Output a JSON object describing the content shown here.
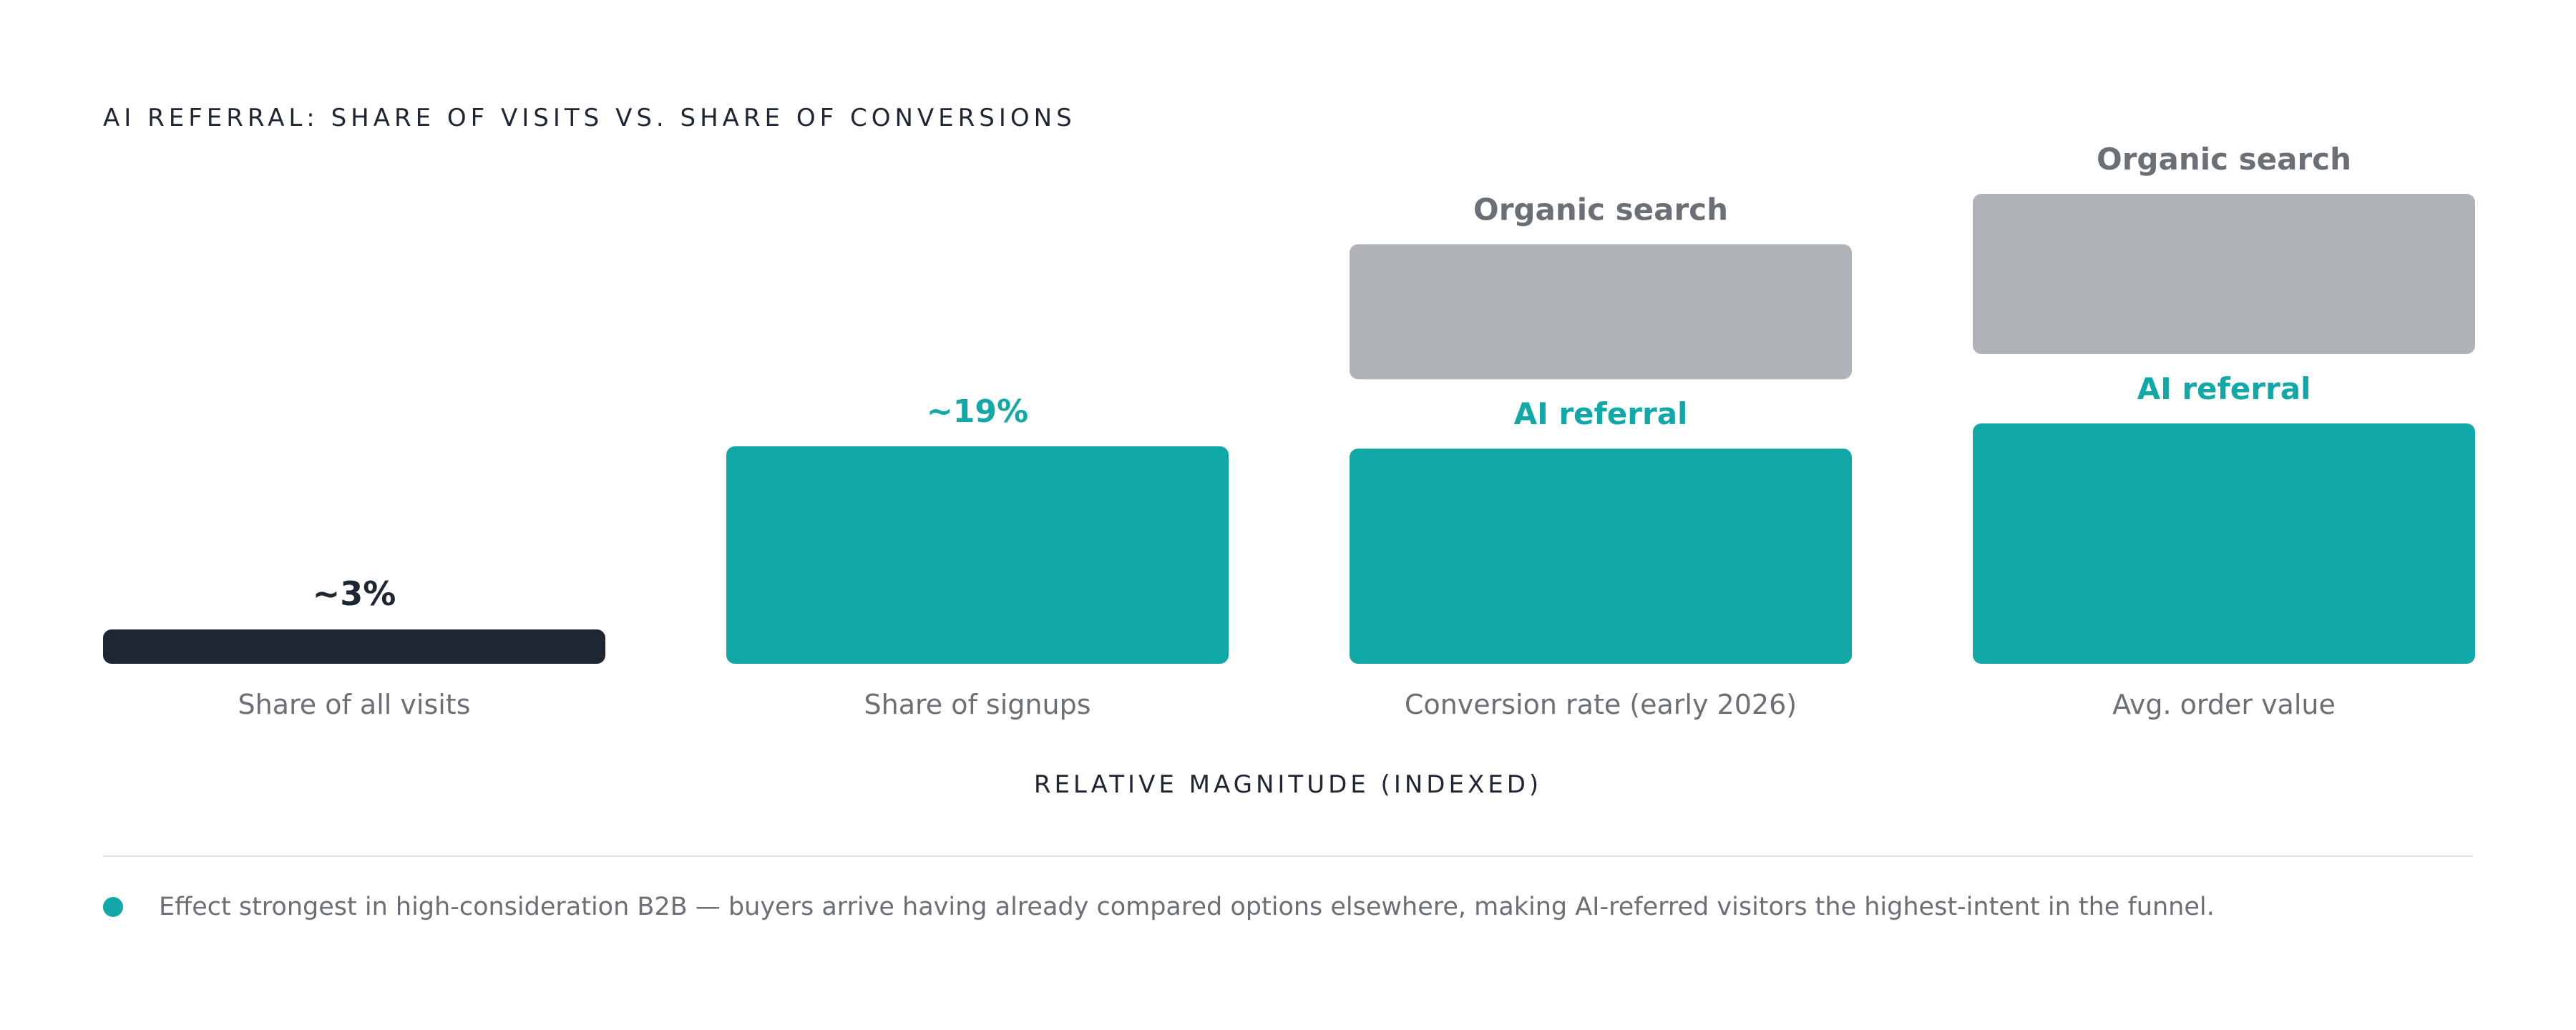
{
  "colors": {
    "ai_referral": "#12a8a8",
    "organic_search": "#afb2b6",
    "all_visits": "#1e2633",
    "label_gray": "#6b6f76",
    "title": "#1e2633",
    "divider": "#e0e2e5"
  },
  "chart_data": {
    "type": "bar",
    "title": "AI REFERRAL: SHARE OF VISITS VS. SHARE OF CONVERSIONS",
    "xlabel": "RELATIVE MAGNITUDE (INDEXED)",
    "ylabel": "",
    "grid": false,
    "groups": [
      {
        "category": "Share of all visits",
        "bars": [
          {
            "name": "",
            "value": 3,
            "label": "~3%",
            "color_key": "all_visits"
          }
        ]
      },
      {
        "category": "Share of signups",
        "bars": [
          {
            "name": "",
            "value": 19,
            "label": "~19%",
            "color_key": "ai_referral"
          }
        ]
      },
      {
        "category": "Conversion rate (early 2026)",
        "bars": [
          {
            "name": "AI referral",
            "value": 18.8,
            "label": "AI referral",
            "color_key": "ai_referral"
          },
          {
            "name": "Organic search",
            "value": 11.8,
            "label": "Organic search",
            "color_key": "organic_search"
          }
        ]
      },
      {
        "category": "Avg. order value",
        "bars": [
          {
            "name": "AI referral",
            "value": 21,
            "label": "AI referral",
            "color_key": "ai_referral"
          },
          {
            "name": "Organic search",
            "value": 14,
            "label": "Organic search",
            "color_key": "organic_search"
          }
        ]
      }
    ]
  },
  "footnote": {
    "text": "Effect strongest in high-consideration B2B — buyers arrive having already compared options elsewhere, making AI-referred visitors the highest-intent in the funnel."
  }
}
